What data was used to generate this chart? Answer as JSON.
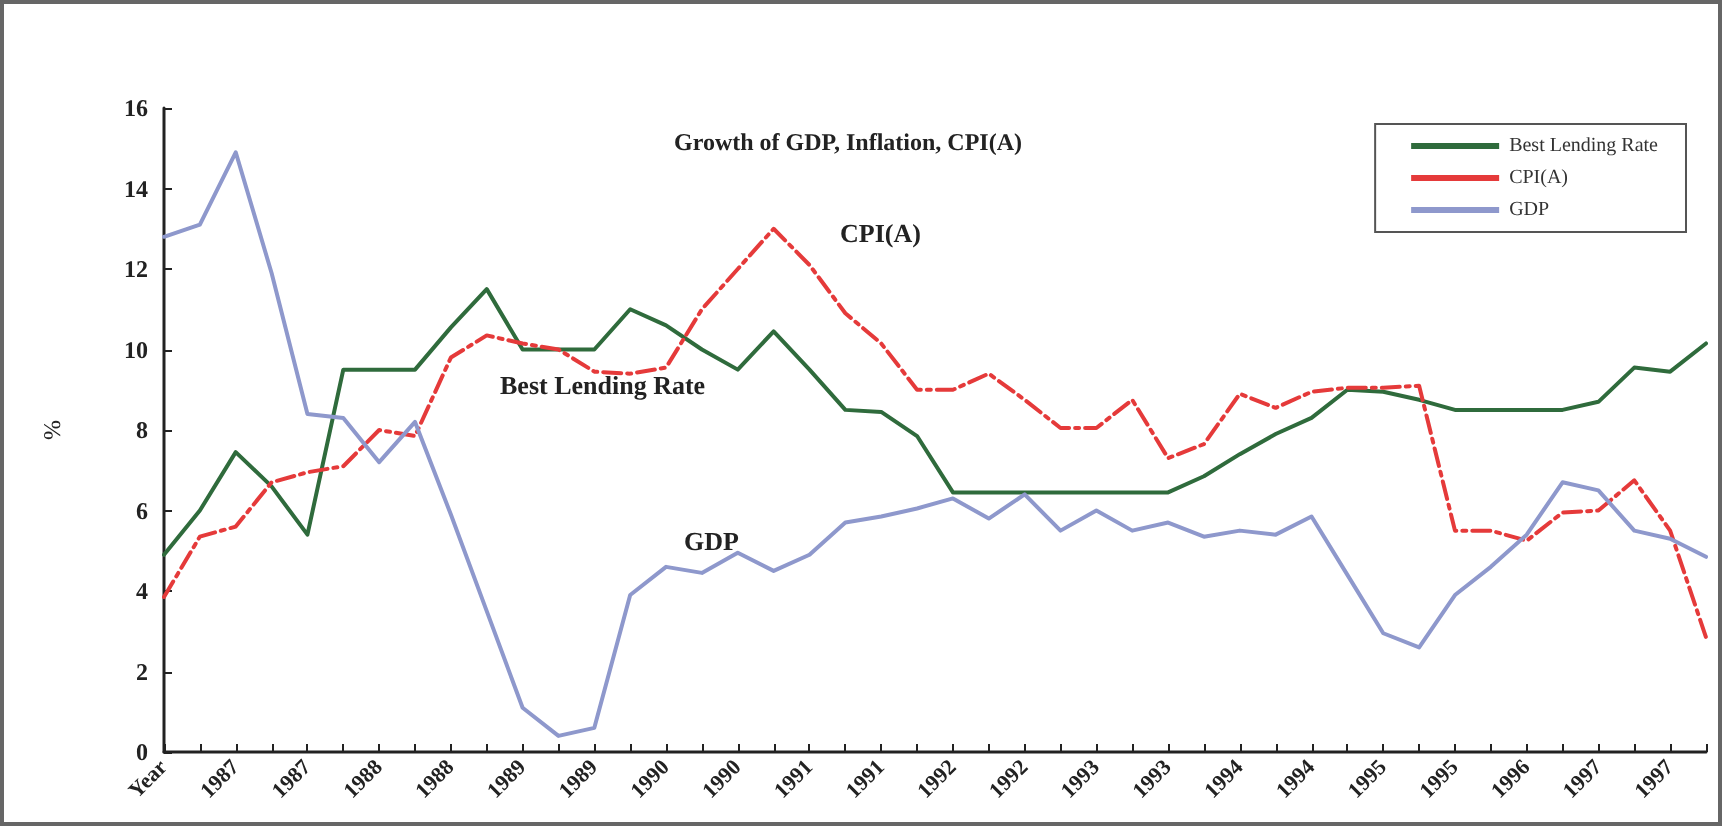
{
  "chart_data": {
    "type": "line",
    "title": "Growth of GDP, Inflation, CPI(A)",
    "ylabel": "%",
    "categories": [
      "Year",
      null,
      "1987",
      null,
      "1987",
      null,
      "1988",
      null,
      "1988",
      null,
      "1989",
      null,
      "1989",
      null,
      "1990",
      null,
      "1990",
      null,
      "1991",
      null,
      "1991",
      null,
      "1992",
      null,
      "1992",
      null,
      "1993",
      null,
      "1993",
      null,
      "1994",
      null,
      "1994",
      null,
      "1995",
      null,
      "1995",
      null,
      "1996",
      null,
      "1997",
      null,
      "1997",
      null
    ],
    "series": [
      {
        "name": "Best Lending Rate",
        "color": "#2f6b3c",
        "line_style": "solid",
        "values": [
          4.9,
          6.0,
          7.45,
          6.6,
          5.4,
          9.5,
          9.5,
          9.5,
          10.55,
          11.5,
          10.0,
          10.0,
          10.0,
          11.0,
          10.6,
          10.0,
          9.5,
          10.45,
          9.5,
          8.5,
          8.45,
          7.85,
          6.45,
          6.45,
          6.45,
          6.45,
          6.45,
          6.45,
          6.45,
          6.85,
          7.4,
          7.9,
          8.3,
          9.0,
          8.95,
          8.75,
          8.5,
          8.5,
          8.5,
          8.5,
          8.7,
          9.55,
          9.45,
          10.15
        ]
      },
      {
        "name": "CPI(A)",
        "color": "#e53a3a",
        "line_style": "dashed",
        "values": [
          3.85,
          5.35,
          5.6,
          6.7,
          6.95,
          7.1,
          8.0,
          7.85,
          9.8,
          10.35,
          10.15,
          10.0,
          9.45,
          9.4,
          9.55,
          11.0,
          12.0,
          13.0,
          12.1,
          10.9,
          10.15,
          9.0,
          9.0,
          9.4,
          8.75,
          8.05,
          8.05,
          8.75,
          7.3,
          7.65,
          8.9,
          8.55,
          8.95,
          9.05,
          9.05,
          9.1,
          5.5,
          5.5,
          5.25,
          5.95,
          6.0,
          6.75,
          5.5,
          2.85
        ]
      },
      {
        "name": "GDP",
        "color": "#8e98cc",
        "line_style": "solid",
        "values": [
          12.8,
          13.1,
          14.9,
          11.9,
          8.4,
          8.3,
          7.2,
          8.2,
          5.9,
          3.5,
          1.1,
          0.4,
          0.6,
          3.9,
          4.6,
          4.45,
          4.95,
          4.5,
          4.9,
          5.7,
          5.85,
          6.05,
          6.3,
          5.8,
          6.4,
          5.5,
          6.0,
          5.5,
          5.7,
          5.35,
          5.5,
          5.4,
          5.85,
          4.4,
          2.95,
          2.6,
          3.9,
          4.6,
          5.4,
          6.7,
          6.5,
          5.5,
          5.3,
          4.85
        ]
      }
    ],
    "annotations": [
      "CPI(A)",
      "Best Lending Rate",
      "GDP"
    ],
    "ylim": [
      0,
      16
    ],
    "yticks": [
      0,
      2,
      4,
      6,
      8,
      10,
      12,
      14,
      16
    ],
    "grid": false,
    "legend": "top right",
    "marker": "none"
  }
}
